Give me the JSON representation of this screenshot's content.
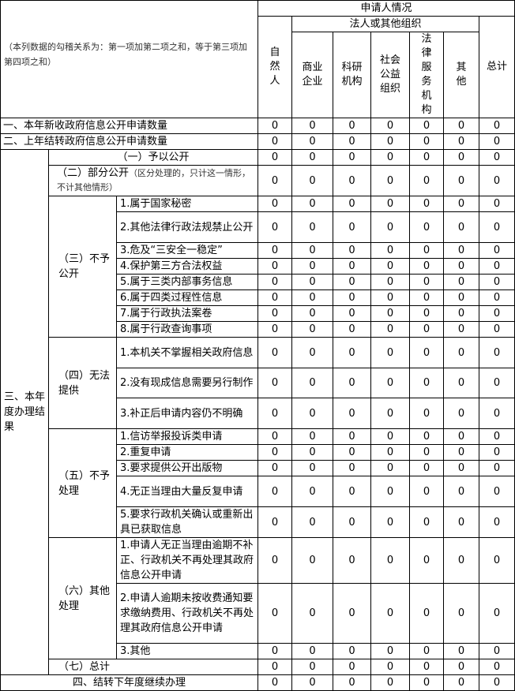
{
  "header": {
    "note": "（本列数据的勾稽关系为：第一项加第二项之和，等于第三项加第四项之和）",
    "applicant": "申请人情况",
    "natural_person": "自然人",
    "legal_org": "法人或其他组织",
    "total": "总计",
    "org_columns": [
      "商业企业",
      "科研机构",
      "社会公益组织",
      "法律服务机构",
      "其他"
    ]
  },
  "sections": {
    "new_requests": "一、本年新收政府信息公开申请数量",
    "carried_over": "二、上年结转政府信息公开申请数量",
    "results": "三、本年度办理结果",
    "carry_next": "四、结转下年度继续办理"
  },
  "groups": {
    "g1": "（一）予以公开",
    "g2": "（二）部分公开",
    "g2_note": "（区分处理的，只计这一情形，不计其他情形）",
    "g3": "（三）不予公开",
    "g4": "（四）无法提供",
    "g5": "（五）不予处理",
    "g6": "（六）其他处理",
    "g7": "（七）总计"
  },
  "items": {
    "g3": [
      "1.属于国家秘密",
      "2.其他法律行政法规禁止公开",
      "3.危及“三安全一稳定”",
      "4.保护第三方合法权益",
      "5.属于三类内部事务信息",
      "6.属于四类过程性信息",
      "7.属于行政执法案卷",
      "8.属于行政查询事项"
    ],
    "g4": [
      "1.本机关不掌握相关政府信息",
      "2.没有现成信息需要另行制作",
      "3.补正后申请内容仍不明确"
    ],
    "g5": [
      "1.信访举报投诉类申请",
      "2.重复申请",
      "3.要求提供公开出版物",
      "4.无正当理由大量反复申请",
      "5.要求行政机关确认或重新出具已获取信息"
    ],
    "g6": [
      "1.申请人无正当理由逾期不补正、行政机关不再处理其政府信息公开申请",
      "2.申请人逾期未按收费通知要求缴纳费用、行政机关不再处理其政府信息公开申请",
      "3.其他"
    ]
  },
  "values": {
    "new_requests": [
      0,
      0,
      0,
      0,
      0,
      0,
      0
    ],
    "carried_over": [
      0,
      0,
      0,
      0,
      0,
      0,
      0
    ],
    "g1": [
      0,
      0,
      0,
      0,
      0,
      0,
      0
    ],
    "g2": [
      0,
      0,
      0,
      0,
      0,
      0,
      0
    ],
    "g3": [
      [
        0,
        0,
        0,
        0,
        0,
        0,
        0
      ],
      [
        0,
        0,
        0,
        0,
        0,
        0,
        0
      ],
      [
        0,
        0,
        0,
        0,
        0,
        0,
        0
      ],
      [
        0,
        0,
        0,
        0,
        0,
        0,
        0
      ],
      [
        0,
        0,
        0,
        0,
        0,
        0,
        0
      ],
      [
        0,
        0,
        0,
        0,
        0,
        0,
        0
      ],
      [
        0,
        0,
        0,
        0,
        0,
        0,
        0
      ],
      [
        0,
        0,
        0,
        0,
        0,
        0,
        0
      ]
    ],
    "g4": [
      [
        0,
        0,
        0,
        0,
        0,
        0,
        0
      ],
      [
        0,
        0,
        0,
        0,
        0,
        0,
        0
      ],
      [
        0,
        0,
        0,
        0,
        0,
        0,
        0
      ]
    ],
    "g5": [
      [
        0,
        0,
        0,
        0,
        0,
        0,
        0
      ],
      [
        0,
        0,
        0,
        0,
        0,
        0,
        0
      ],
      [
        0,
        0,
        0,
        0,
        0,
        0,
        0
      ],
      [
        0,
        0,
        0,
        0,
        0,
        0,
        0
      ],
      [
        0,
        0,
        0,
        0,
        0,
        0,
        0
      ]
    ],
    "g6": [
      [
        0,
        0,
        0,
        0,
        0,
        0,
        0
      ],
      [
        0,
        0,
        0,
        0,
        0,
        0,
        0
      ],
      [
        0,
        0,
        0,
        0,
        0,
        0,
        0
      ]
    ],
    "g7": [
      0,
      0,
      0,
      0,
      0,
      0,
      0
    ],
    "carry_next": [
      0,
      0,
      0,
      0,
      0,
      0,
      0
    ]
  }
}
